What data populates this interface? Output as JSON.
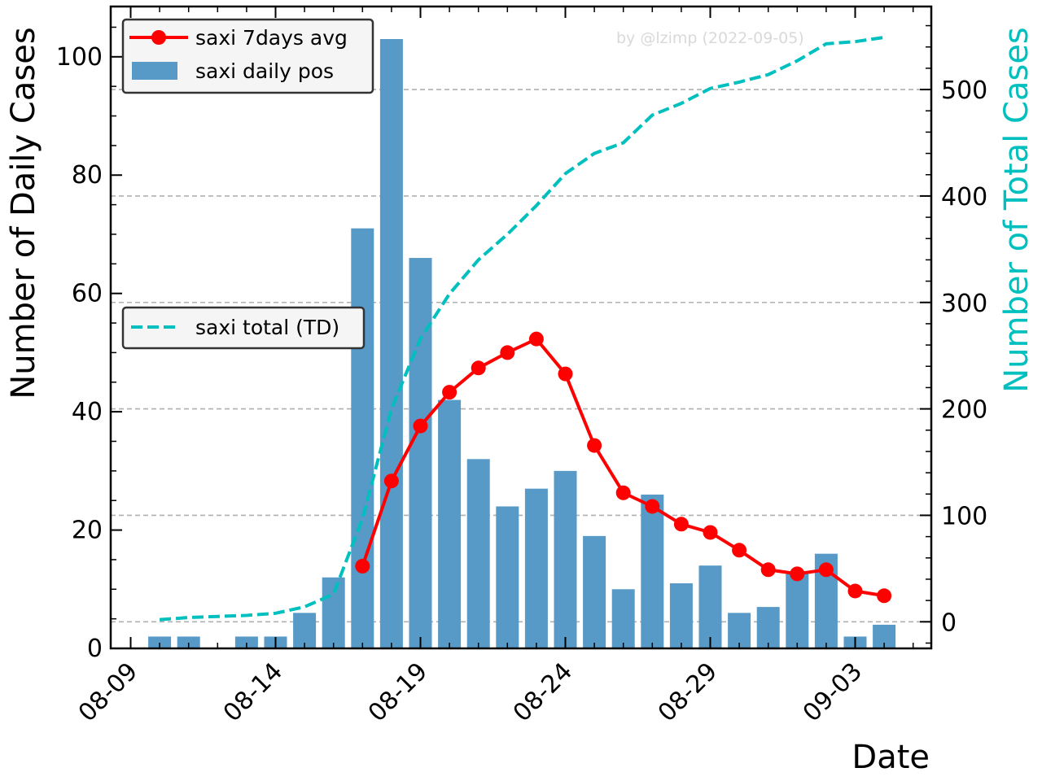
{
  "chart_data": {
    "type": "bar",
    "watermark": "by @lzimp (2022-09-05)",
    "xlabel": "Date",
    "ylabel": "Number of Daily Cases",
    "ylabel_right": "Number of Total Cases",
    "ylim": [
      0,
      108.5
    ],
    "ylim_right": [
      -25,
      578
    ],
    "yticks": [
      0,
      20,
      40,
      60,
      80,
      100
    ],
    "yticks_right": [
      0,
      100,
      200,
      300,
      400,
      500
    ],
    "dates": [
      "08-10",
      "08-11",
      "08-12",
      "08-13",
      "08-14",
      "08-15",
      "08-16",
      "08-17",
      "08-18",
      "08-19",
      "08-20",
      "08-21",
      "08-22",
      "08-23",
      "08-24",
      "08-25",
      "08-26",
      "08-27",
      "08-28",
      "08-29",
      "08-30",
      "08-31",
      "09-01",
      "09-02",
      "09-03",
      "09-04"
    ],
    "xticks": [
      "08-09",
      "08-14",
      "08-19",
      "08-24",
      "08-29",
      "09-03"
    ],
    "grid": "horizontal dashed gray",
    "legend_main": "top-left",
    "legend_total": "middle-left",
    "series": [
      {
        "name": "saxi daily pos",
        "kind": "bar",
        "color": "#5799c7",
        "values": [
          2,
          2,
          0,
          2,
          2,
          6,
          12,
          71,
          103,
          66,
          42,
          32,
          24,
          27,
          30,
          19,
          10,
          26,
          11,
          14,
          6,
          7,
          13,
          16,
          2,
          4
        ]
      },
      {
        "name": "saxi 7days avg",
        "kind": "line-marker",
        "color": "#ff0000",
        "values": [
          null,
          null,
          null,
          null,
          null,
          null,
          null,
          13.9,
          28.3,
          37.6,
          43.3,
          47.4,
          50.0,
          52.3,
          46.4,
          34.3,
          26.3,
          24.0,
          21.0,
          19.6,
          16.6,
          13.3,
          12.6,
          13.3,
          9.7,
          8.9
        ]
      },
      {
        "name": "saxi total (TD)",
        "kind": "line-dashed",
        "axis": "right",
        "color": "#00bfbf",
        "values": [
          2,
          4,
          5,
          6,
          8,
          14,
          26,
          97,
          200,
          266,
          308,
          340,
          364,
          391,
          421,
          440,
          450,
          476,
          487,
          501,
          507,
          514,
          527,
          543,
          545,
          549
        ]
      }
    ]
  }
}
